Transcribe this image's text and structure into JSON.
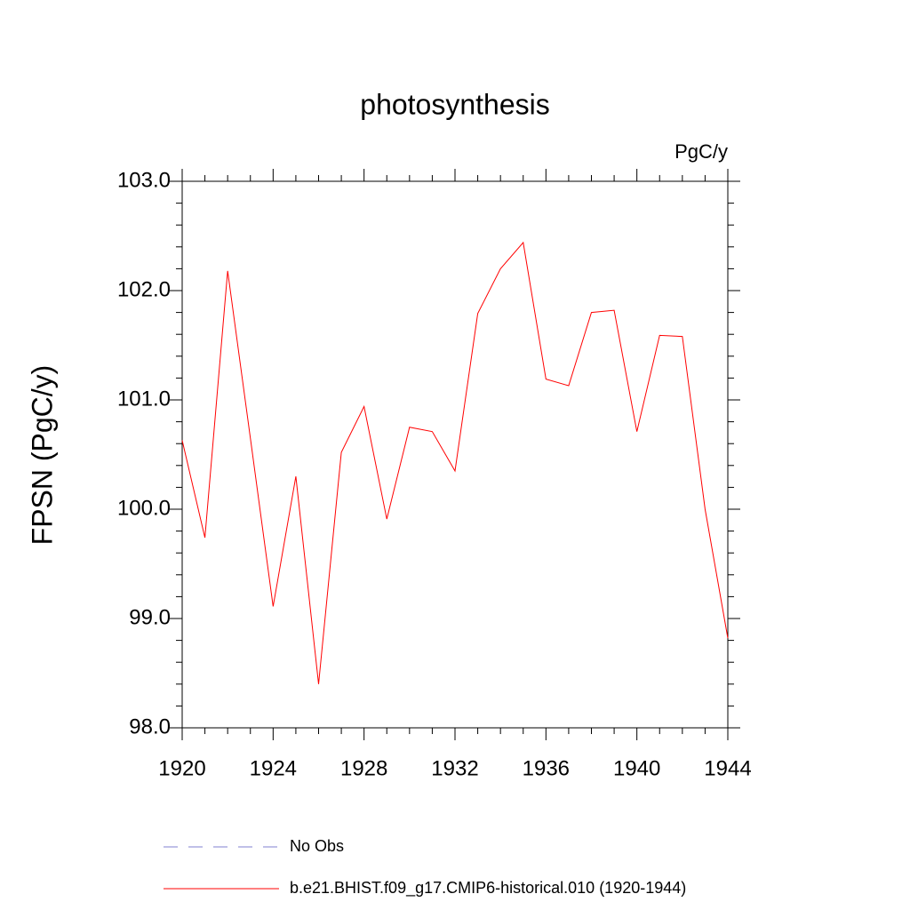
{
  "chart_data": {
    "type": "line",
    "title": "photosynthesis",
    "units": "PgC/y",
    "y_label": "FPSN  (PgC/y)",
    "x": [
      1920,
      1921,
      1922,
      1923,
      1924,
      1925,
      1926,
      1927,
      1928,
      1929,
      1930,
      1931,
      1932,
      1933,
      1934,
      1935,
      1936,
      1937,
      1938,
      1939,
      1940,
      1941,
      1942,
      1943,
      1944
    ],
    "series": [
      {
        "name": "No Obs",
        "color": "#8080d0",
        "linestyle": "dashed",
        "values": [
          null,
          null,
          null,
          null,
          null,
          null,
          null,
          null,
          null,
          null,
          null,
          null,
          null,
          null,
          null,
          null,
          null,
          null,
          null,
          null,
          null,
          null,
          null,
          null,
          null
        ]
      },
      {
        "name": "b.e21.BHIST.f09_g17.CMIP6-historical.010 (1920-1944)",
        "color": "#ff0000",
        "linestyle": "solid",
        "values": [
          100.63,
          99.74,
          102.18,
          100.65,
          99.11,
          100.3,
          98.4,
          100.52,
          100.94,
          99.91,
          100.75,
          100.71,
          100.35,
          101.79,
          102.2,
          102.44,
          101.19,
          101.13,
          101.8,
          101.82,
          100.71,
          101.59,
          101.58,
          100.0,
          98.82
        ]
      }
    ],
    "xlim": [
      1920,
      1944
    ],
    "xticks": [
      1920,
      1924,
      1928,
      1932,
      1936,
      1940,
      1944
    ],
    "ylim": [
      98,
      103
    ],
    "yticks": [
      {
        "value": 98,
        "label": "98.0"
      },
      {
        "value": 99,
        "label": "99.0"
      },
      {
        "value": 100,
        "label": "100.0"
      },
      {
        "value": 101,
        "label": "101.0"
      },
      {
        "value": 102,
        "label": "102.0"
      },
      {
        "value": 103,
        "label": "103.0"
      }
    ],
    "grid": false
  }
}
